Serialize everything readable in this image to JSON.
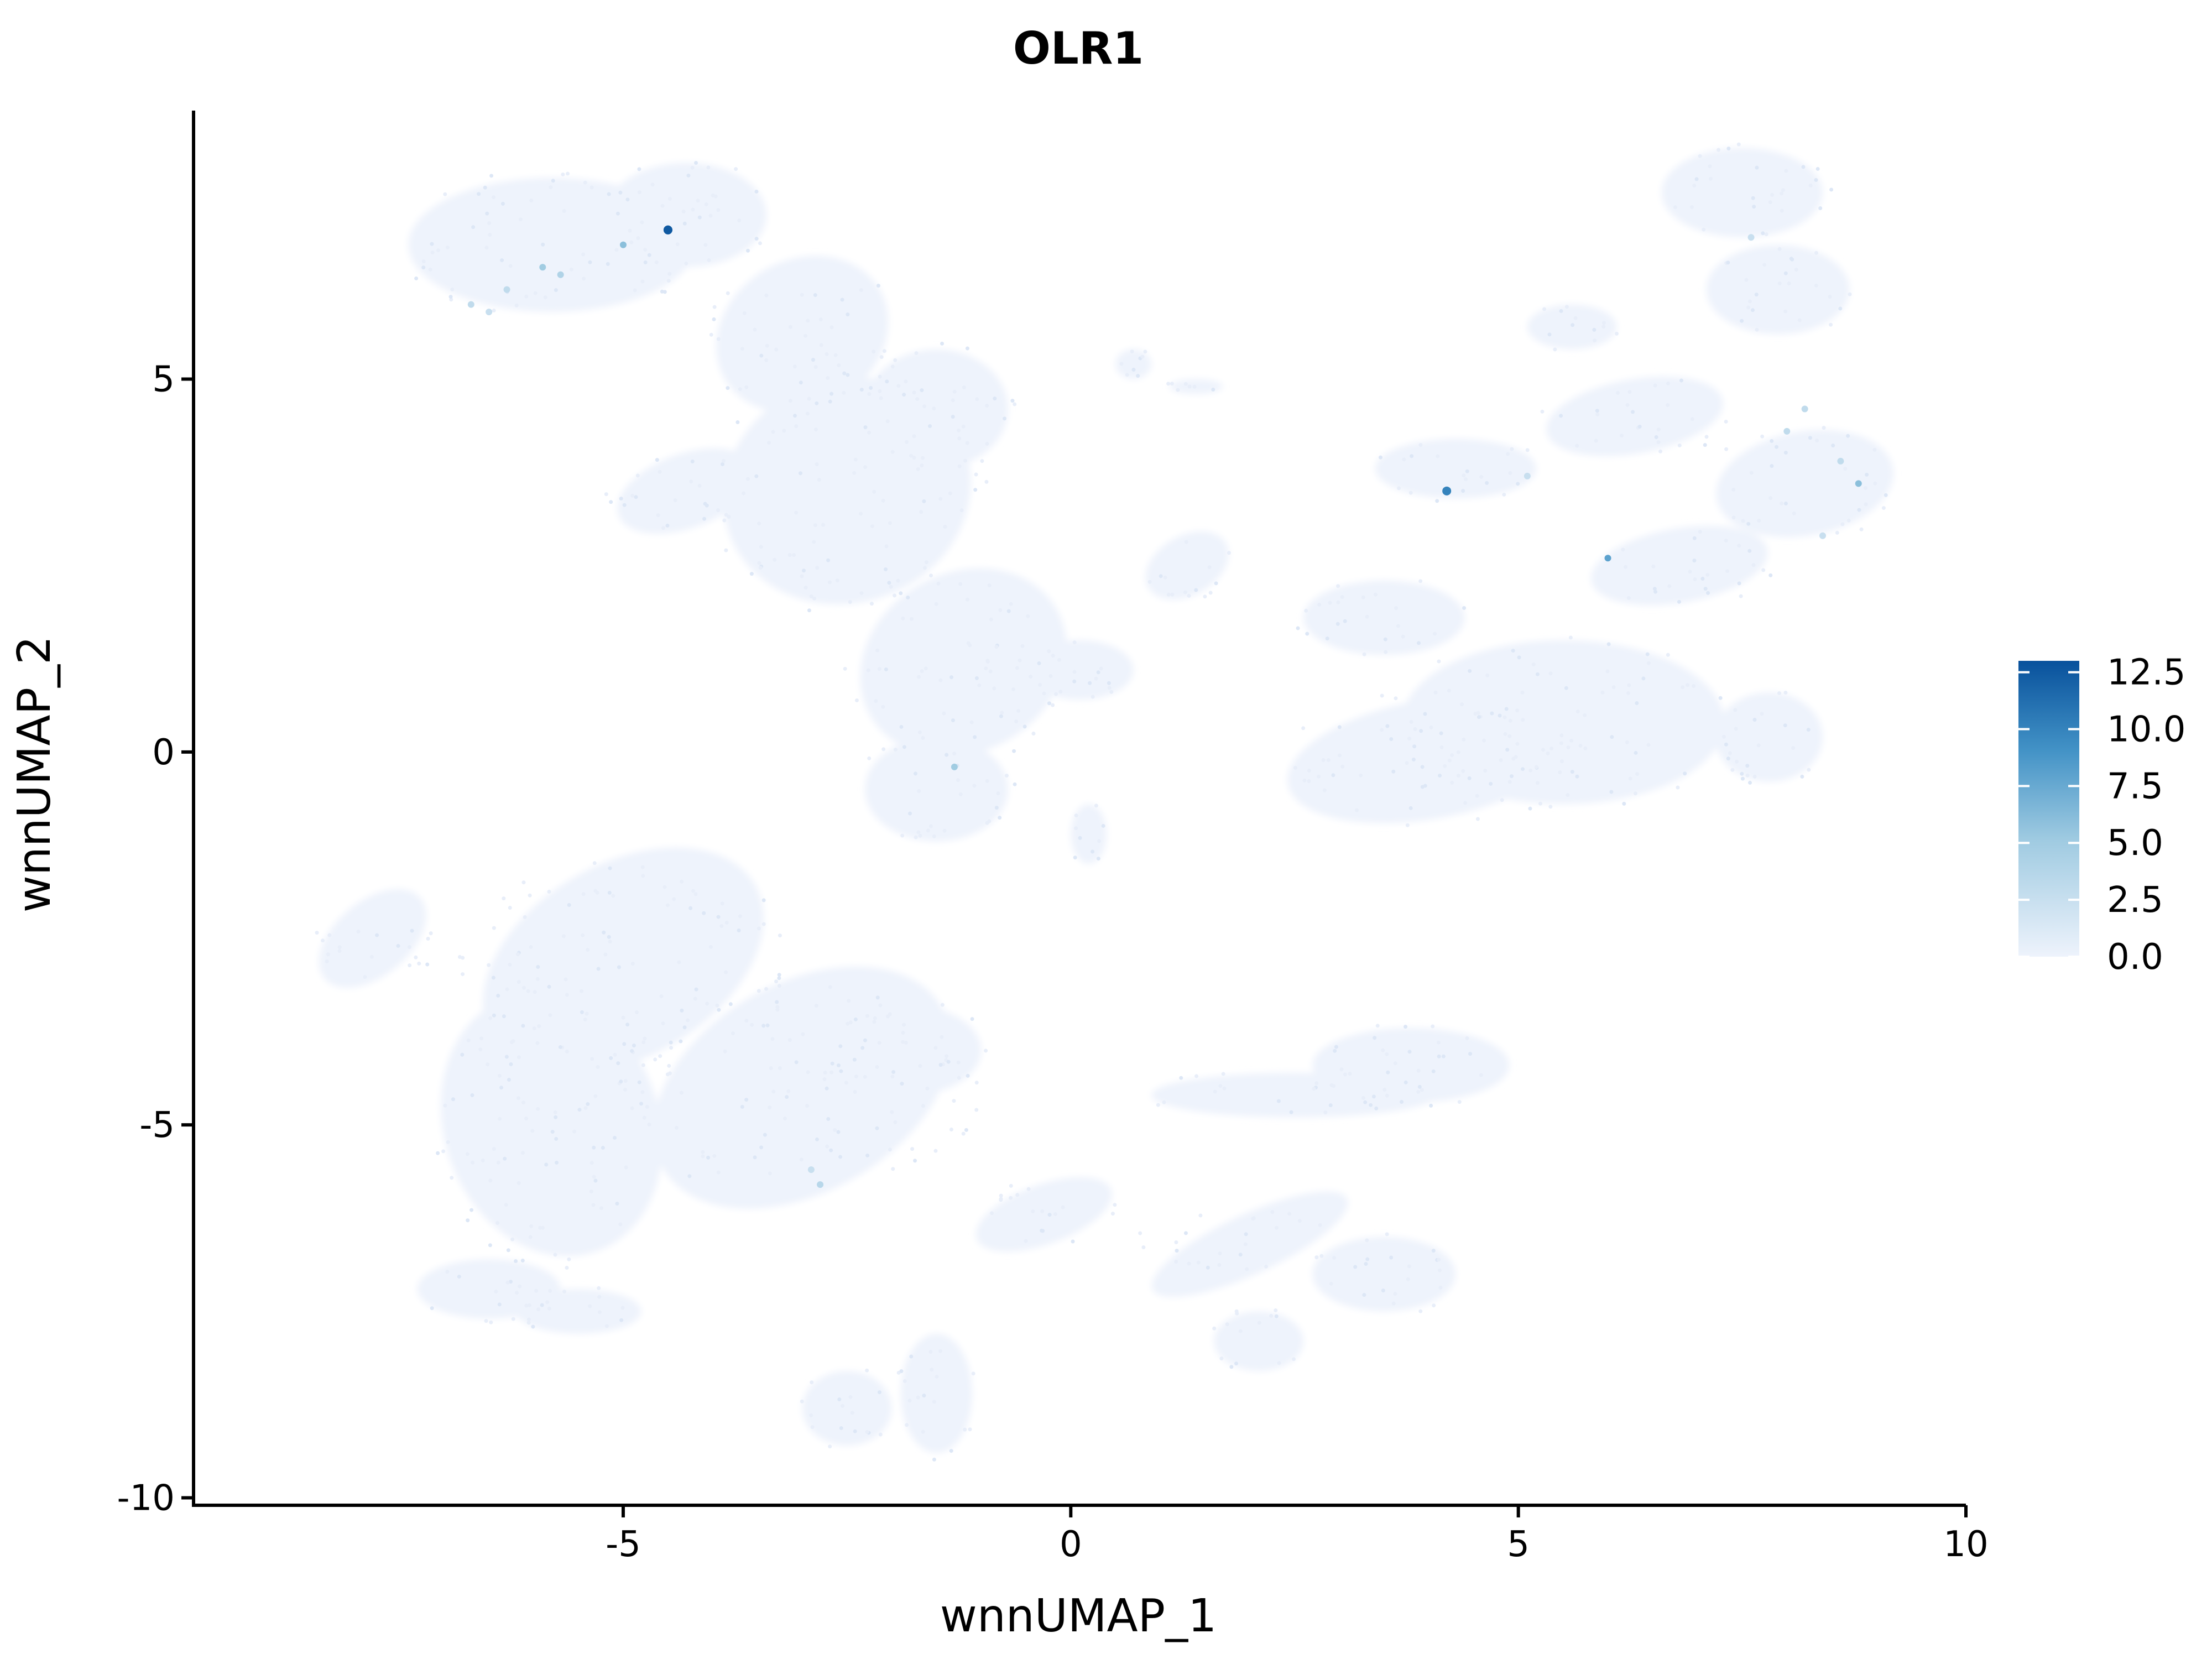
{
  "chart_data": {
    "type": "scatter",
    "title": "OLR1",
    "xlabel": "wnnUMAP_1",
    "ylabel": "wnnUMAP_2",
    "xlim": [
      -9.8,
      10
    ],
    "ylim": [
      -10.1,
      8.6
    ],
    "x_ticks": [
      -5,
      0,
      5,
      10
    ],
    "x_tick_labels": [
      "-5",
      "0",
      "5",
      "10"
    ],
    "y_ticks": [
      -10,
      -5,
      0,
      5
    ],
    "y_tick_labels": [
      "-10",
      "-5",
      "0",
      "5"
    ],
    "grid": false,
    "legend": {
      "position": "right",
      "ticks": [
        0.0,
        2.5,
        5.0,
        7.5,
        10.0,
        12.5
      ],
      "tick_labels": [
        "0.0",
        "2.5",
        "5.0",
        "7.5",
        "10.0",
        "12.5"
      ],
      "range": [
        0,
        13
      ],
      "low_color": "#eef3fc",
      "high_color": "#08519c"
    },
    "highlighted_points": [
      {
        "x": -4.5,
        "y": 7.0,
        "value": 12.5
      },
      {
        "x": -4.5,
        "y": 7.0,
        "value": 12.5
      },
      {
        "x": -5.0,
        "y": 6.8,
        "value": 6.0
      },
      {
        "x": -5.9,
        "y": 6.5,
        "value": 5.0
      },
      {
        "x": -5.7,
        "y": 6.4,
        "value": 4.0
      },
      {
        "x": -6.3,
        "y": 6.2,
        "value": 3.0
      },
      {
        "x": -6.7,
        "y": 6.0,
        "value": 3.0
      },
      {
        "x": -6.5,
        "y": 5.9,
        "value": 2.5
      },
      {
        "x": -1.3,
        "y": -0.2,
        "value": 5.0
      },
      {
        "x": -2.8,
        "y": -5.8,
        "value": 3.5
      },
      {
        "x": 4.2,
        "y": 3.5,
        "value": 10.0
      },
      {
        "x": 6.0,
        "y": 2.6,
        "value": 8.0
      },
      {
        "x": 8.8,
        "y": 3.6,
        "value": 6.0
      },
      {
        "x": 8.2,
        "y": 4.6,
        "value": 3.0
      },
      {
        "x": 8.0,
        "y": 4.3,
        "value": 3.0
      },
      {
        "x": 8.6,
        "y": 3.9,
        "value": 3.0
      },
      {
        "x": 5.1,
        "y": 3.7,
        "value": 2.5
      },
      {
        "x": 7.6,
        "y": 6.9,
        "value": 2.5
      },
      {
        "x": 8.4,
        "y": 2.9,
        "value": 2.5
      },
      {
        "x": -2.9,
        "y": -5.6,
        "value": 2.5
      }
    ]
  }
}
